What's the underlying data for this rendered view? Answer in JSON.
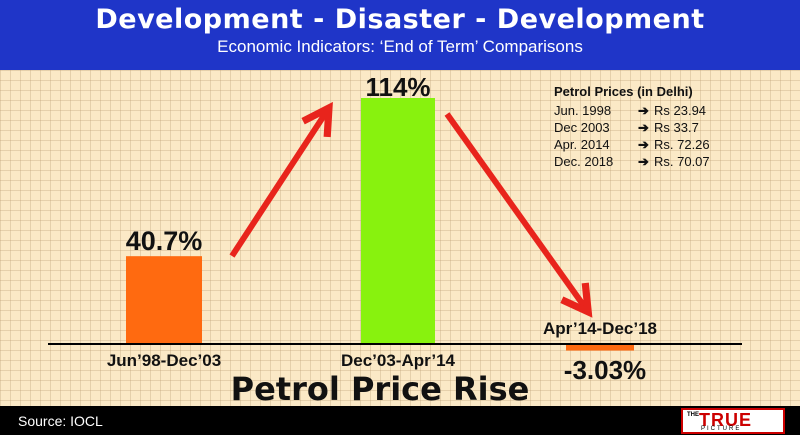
{
  "title": "Development - Disaster - Development",
  "subtitle": "Economic Indicators: ‘End of  Term’ Comparisons",
  "source": "Source: IOCL",
  "logo": {
    "small": "THE",
    "word": "TRUE",
    "sub": "PICTURE"
  },
  "colors": {
    "header": "#1f35c8",
    "background": "#fbe9c6",
    "arrow": "#e8241c"
  },
  "chart_data": {
    "type": "bar",
    "title": "Petrol Price Rise",
    "categories": [
      "Jun’98-Dec’03",
      "Dec’03-Apr’14",
      "Apr’14-Dec’18"
    ],
    "values": [
      40.7,
      114,
      -3.03
    ],
    "data_labels": [
      "40.7%",
      "114%",
      "-3.03%"
    ],
    "bar_colors": [
      "#ff6a10",
      "#88f20e",
      "#ff6a10"
    ],
    "ylim": [
      -3.03,
      114
    ],
    "grid": true,
    "legend": {
      "title": "Petrol Prices (in Delhi)",
      "placement": "top-right",
      "items": [
        {
          "from": "Jun. 1998",
          "to": "Rs 23.94"
        },
        {
          "from": "Dec 2003",
          "to": "Rs 33.7"
        },
        {
          "from": "Apr. 2014",
          "to": "Rs. 72.26"
        },
        {
          "from": "Dec. 2018",
          "to": "Rs. 70.07"
        }
      ]
    }
  }
}
